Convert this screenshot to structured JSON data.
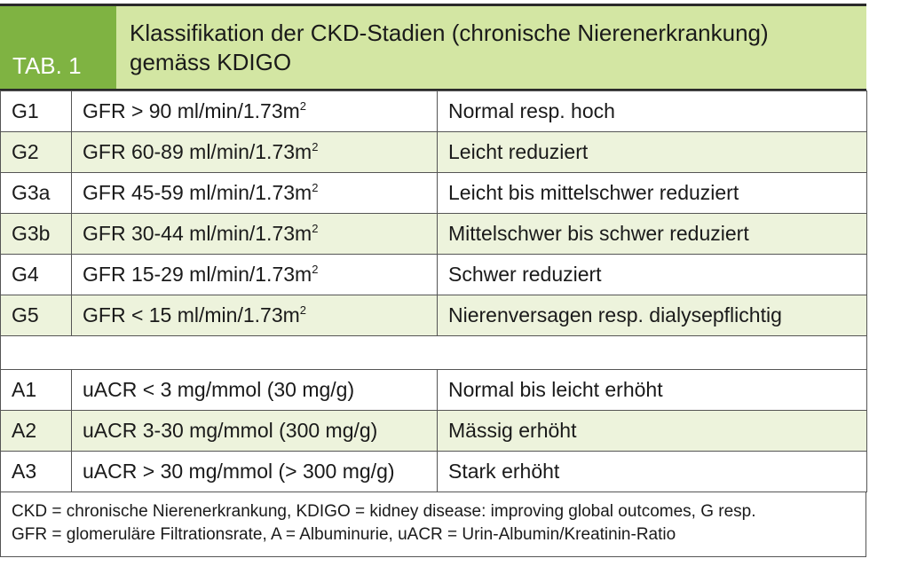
{
  "header": {
    "tab_label": "TAB. 1",
    "title_line1": "Klassifikation der CKD-Stadien (chronische Nierenerkrankung)",
    "title_line2": "gemäss KDIGO"
  },
  "gfr_rows": [
    {
      "stage": "G1",
      "range": "GFR > 90 ml/min/1.73m",
      "sup": "2",
      "desc": "Normal resp. hoch"
    },
    {
      "stage": "G2",
      "range": "GFR 60-89 ml/min/1.73m",
      "sup": "2",
      "desc": "Leicht reduziert"
    },
    {
      "stage": "G3a",
      "range": "GFR 45-59 ml/min/1.73m",
      "sup": "2",
      "desc": "Leicht bis mittelschwer reduziert"
    },
    {
      "stage": "G3b",
      "range": "GFR 30-44 ml/min/1.73m",
      "sup": "2",
      "desc": "Mittelschwer bis schwer reduziert"
    },
    {
      "stage": "G4",
      "range": "GFR 15-29 ml/min/1.73m",
      "sup": "2",
      "desc": "Schwer reduziert"
    },
    {
      "stage": "G5",
      "range": "GFR < 15 ml/min/1.73m",
      "sup": "2",
      "desc": "Nierenversagen resp. dialysepflichtig"
    }
  ],
  "albumin_rows": [
    {
      "stage": "A1",
      "range": "uACR < 3 mg/mmol (30 mg/g)",
      "desc": "Normal bis leicht erhöht"
    },
    {
      "stage": "A2",
      "range": "uACR 3-30 mg/mmol (300 mg/g)",
      "desc": "Mässig erhöht"
    },
    {
      "stage": "A3",
      "range": "uACR > 30 mg/mmol (> 300 mg/g)",
      "desc": "Stark erhöht"
    }
  ],
  "footnote": {
    "line1": "CKD = chronische Nierenerkrankung, KDIGO = kidney disease: improving global outcomes, G resp.",
    "line2": "GFR = glomeruläre Filtrationsrate, A = Albuminurie, uACR = Urin-Albumin/Kreatinin-Ratio"
  },
  "colors": {
    "tab_label_bg": "#7fb342",
    "header_bg": "#d3e6a3",
    "row_stripe": "#edf3dc"
  }
}
